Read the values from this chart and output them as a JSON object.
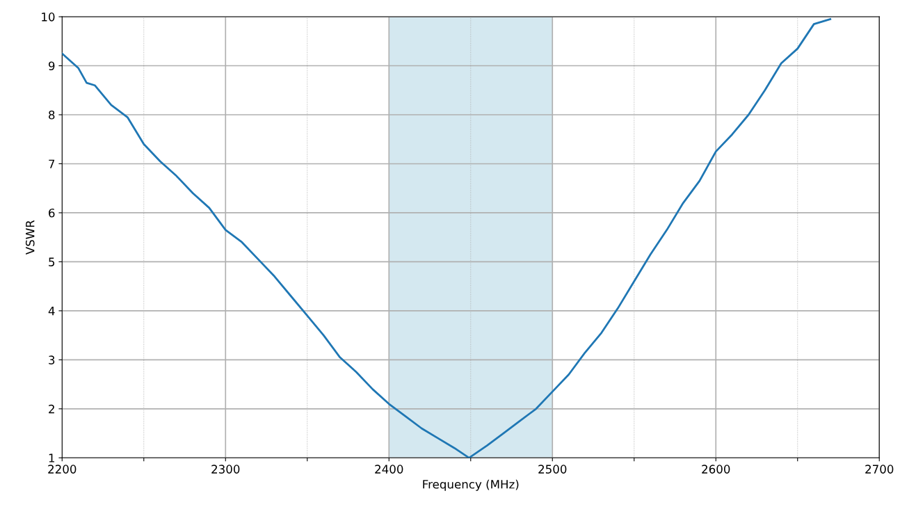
{
  "chart_data": {
    "type": "line",
    "xlabel": "Frequency (MHz)",
    "ylabel": "VSWR",
    "x": [
      2200,
      2205,
      2210,
      2215,
      2220,
      2230,
      2240,
      2250,
      2260,
      2270,
      2280,
      2290,
      2300,
      2310,
      2320,
      2330,
      2340,
      2350,
      2360,
      2370,
      2380,
      2390,
      2400,
      2410,
      2420,
      2430,
      2440,
      2449,
      2460,
      2470,
      2480,
      2490,
      2500,
      2510,
      2520,
      2530,
      2540,
      2550,
      2560,
      2570,
      2580,
      2590,
      2600,
      2610,
      2620,
      2630,
      2640,
      2650,
      2660,
      2670
    ],
    "series": [
      {
        "color": "#1f77b4",
        "values": [
          9.25,
          9.1,
          8.95,
          8.65,
          8.6,
          8.2,
          7.95,
          7.4,
          7.05,
          6.75,
          6.4,
          6.1,
          5.65,
          5.4,
          5.05,
          4.7,
          4.3,
          3.9,
          3.5,
          3.05,
          2.75,
          2.4,
          2.1,
          1.85,
          1.6,
          1.4,
          1.2,
          1.0,
          1.25,
          1.5,
          1.75,
          2.0,
          2.35,
          2.7,
          3.15,
          3.55,
          4.05,
          4.6,
          5.15,
          5.65,
          6.2,
          6.65,
          7.25,
          7.6,
          8.0,
          8.5,
          9.05,
          9.35,
          9.85,
          9.95
        ]
      }
    ],
    "xlim": [
      2200,
      2700
    ],
    "xticks": [
      2200,
      {
        "value": 2250,
        "label": null
      },
      2300,
      {
        "value": 2350,
        "label": null
      },
      2400,
      {
        "value": 2450,
        "label": null
      },
      2500,
      {
        "value": 2550,
        "label": null
      },
      2600,
      {
        "value": 2650,
        "label": null
      },
      2700
    ],
    "ylim": [
      1,
      10
    ],
    "yticks": [
      1,
      2,
      3,
      4,
      5,
      6,
      7,
      8,
      9,
      10
    ],
    "bands": [
      {
        "axis": "x",
        "from": 2400,
        "to": 2500,
        "color": "#d4e8f0"
      }
    ],
    "grid": true
  }
}
